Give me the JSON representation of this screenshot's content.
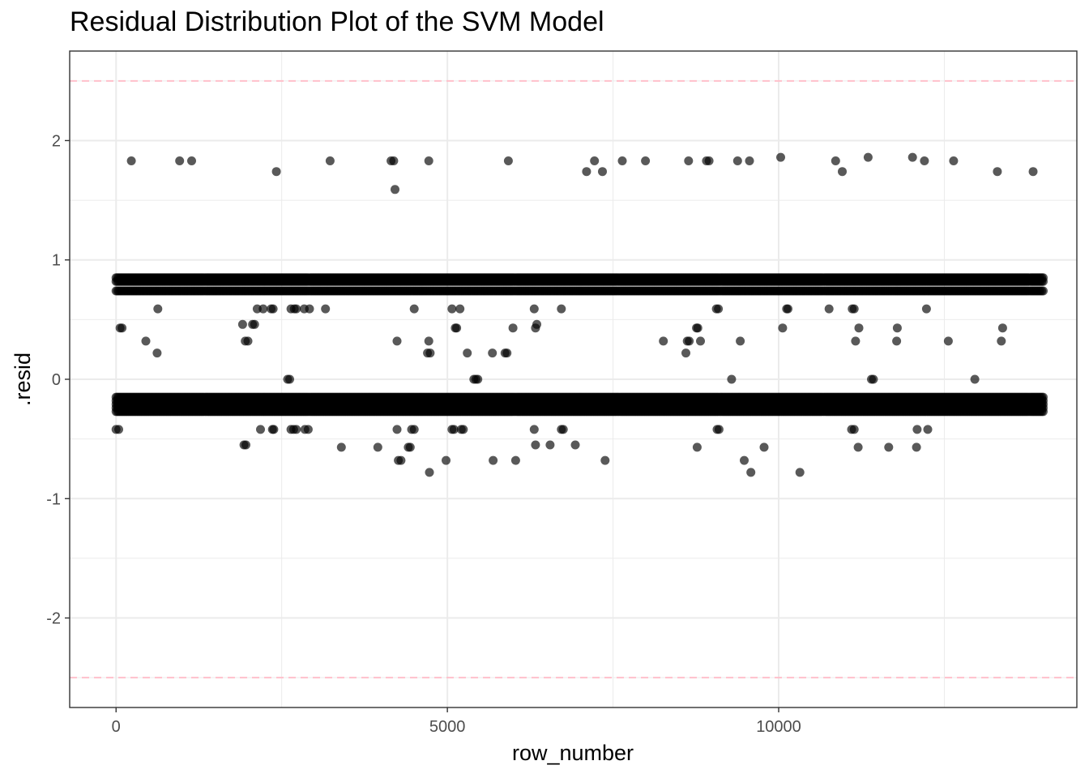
{
  "chart_data": {
    "type": "scatter",
    "title": "Residual Distribution Plot of the SVM Model",
    "xlabel": "row_number",
    "ylabel": ".resid",
    "xlim": [
      -700,
      14500
    ],
    "ylim": [
      -2.75,
      2.75
    ],
    "x_ticks": [
      0,
      5000,
      10000
    ],
    "x_tick_labels": [
      "0",
      "5000",
      "10000"
    ],
    "y_ticks": [
      -2,
      -1,
      0,
      1,
      2
    ],
    "y_tick_labels": [
      "-2",
      "-1",
      "0",
      "1",
      "2"
    ],
    "grid": true,
    "reference_lines": [
      {
        "y": 2.5,
        "style": "dashed",
        "color": "#ffc0cb"
      },
      {
        "y": -2.5,
        "style": "dashed",
        "color": "#ffc0cb"
      }
    ],
    "point_color": "#000000",
    "point_opacity": 0.65,
    "dense_bands": [
      {
        "x_range": [
          0,
          14000
        ],
        "y_values": [
          -0.15,
          -0.18,
          -0.21,
          -0.24,
          -0.27
        ]
      },
      {
        "x_range": [
          0,
          14000
        ],
        "y_values": [
          0.74,
          0.82,
          0.85
        ]
      }
    ],
    "points": [
      [
        230,
        1.83
      ],
      [
        960,
        1.83
      ],
      [
        1140,
        1.83
      ],
      [
        2420,
        1.74
      ],
      [
        3230,
        1.83
      ],
      [
        4150,
        1.83
      ],
      [
        4190,
        1.83
      ],
      [
        4210,
        1.59
      ],
      [
        4720,
        1.83
      ],
      [
        5920,
        1.83
      ],
      [
        7100,
        1.74
      ],
      [
        7220,
        1.83
      ],
      [
        7340,
        1.74
      ],
      [
        7640,
        1.83
      ],
      [
        7990,
        1.83
      ],
      [
        8640,
        1.83
      ],
      [
        8910,
        1.83
      ],
      [
        8950,
        1.83
      ],
      [
        9380,
        1.83
      ],
      [
        9560,
        1.83
      ],
      [
        10030,
        1.86
      ],
      [
        10860,
        1.83
      ],
      [
        10960,
        1.74
      ],
      [
        11350,
        1.86
      ],
      [
        12020,
        1.86
      ],
      [
        12200,
        1.83
      ],
      [
        12640,
        1.83
      ],
      [
        13300,
        1.74
      ],
      [
        13840,
        1.74
      ],
      [
        60,
        0.43
      ],
      [
        90,
        0.43
      ],
      [
        450,
        0.32
      ],
      [
        630,
        0.59
      ],
      [
        620,
        0.22
      ],
      [
        1910,
        0.46
      ],
      [
        1950,
        0.32
      ],
      [
        1990,
        0.32
      ],
      [
        2060,
        0.46
      ],
      [
        2090,
        0.46
      ],
      [
        2130,
        0.59
      ],
      [
        2220,
        0.59
      ],
      [
        2340,
        0.59
      ],
      [
        2370,
        0.59
      ],
      [
        2590,
        0.0
      ],
      [
        2620,
        0.0
      ],
      [
        2640,
        0.59
      ],
      [
        2690,
        0.59
      ],
      [
        2720,
        0.59
      ],
      [
        2840,
        0.59
      ],
      [
        2920,
        0.59
      ],
      [
        3160,
        0.59
      ],
      [
        4240,
        0.32
      ],
      [
        4500,
        0.59
      ],
      [
        4700,
        0.22
      ],
      [
        4720,
        0.32
      ],
      [
        4740,
        0.22
      ],
      [
        5070,
        0.59
      ],
      [
        5120,
        0.43
      ],
      [
        5140,
        0.43
      ],
      [
        5190,
        0.59
      ],
      [
        5300,
        0.22
      ],
      [
        5400,
        0.0
      ],
      [
        5430,
        0.0
      ],
      [
        5460,
        0.0
      ],
      [
        5680,
        0.22
      ],
      [
        5870,
        0.22
      ],
      [
        5900,
        0.22
      ],
      [
        5990,
        0.43
      ],
      [
        6310,
        0.59
      ],
      [
        6330,
        0.43
      ],
      [
        6350,
        0.46
      ],
      [
        6720,
        0.59
      ],
      [
        8260,
        0.32
      ],
      [
        8600,
        0.22
      ],
      [
        8620,
        0.32
      ],
      [
        8650,
        0.32
      ],
      [
        8760,
        0.43
      ],
      [
        8780,
        0.43
      ],
      [
        8820,
        0.32
      ],
      [
        9060,
        0.59
      ],
      [
        9090,
        0.59
      ],
      [
        9290,
        0.0
      ],
      [
        9420,
        0.32
      ],
      [
        10060,
        0.43
      ],
      [
        10120,
        0.59
      ],
      [
        10140,
        0.59
      ],
      [
        10760,
        0.59
      ],
      [
        11110,
        0.59
      ],
      [
        11140,
        0.59
      ],
      [
        11160,
        0.32
      ],
      [
        11210,
        0.43
      ],
      [
        11400,
        0.0
      ],
      [
        11430,
        0.0
      ],
      [
        11790,
        0.43
      ],
      [
        11780,
        0.32
      ],
      [
        12230,
        0.59
      ],
      [
        12560,
        0.32
      ],
      [
        12960,
        0.0
      ],
      [
        13380,
        0.43
      ],
      [
        13360,
        0.32
      ],
      [
        0,
        -0.42
      ],
      [
        40,
        -0.42
      ],
      [
        1930,
        -0.55
      ],
      [
        1960,
        -0.55
      ],
      [
        2180,
        -0.42
      ],
      [
        2360,
        -0.42
      ],
      [
        2380,
        -0.42
      ],
      [
        2640,
        -0.42
      ],
      [
        2680,
        -0.42
      ],
      [
        2720,
        -0.42
      ],
      [
        2850,
        -0.42
      ],
      [
        2900,
        -0.42
      ],
      [
        3400,
        -0.57
      ],
      [
        3950,
        -0.57
      ],
      [
        4240,
        -0.42
      ],
      [
        4260,
        -0.68
      ],
      [
        4300,
        -0.68
      ],
      [
        4460,
        -0.42
      ],
      [
        4500,
        -0.42
      ],
      [
        4410,
        -0.57
      ],
      [
        4440,
        -0.57
      ],
      [
        4730,
        -0.78
      ],
      [
        4980,
        -0.68
      ],
      [
        5070,
        -0.42
      ],
      [
        5100,
        -0.42
      ],
      [
        5210,
        -0.42
      ],
      [
        5240,
        -0.42
      ],
      [
        5690,
        -0.68
      ],
      [
        6030,
        -0.68
      ],
      [
        6310,
        -0.42
      ],
      [
        6330,
        -0.55
      ],
      [
        6550,
        -0.55
      ],
      [
        6720,
        -0.42
      ],
      [
        6750,
        -0.42
      ],
      [
        6930,
        -0.55
      ],
      [
        7380,
        -0.68
      ],
      [
        8770,
        -0.57
      ],
      [
        9070,
        -0.42
      ],
      [
        9100,
        -0.42
      ],
      [
        9480,
        -0.68
      ],
      [
        9580,
        -0.78
      ],
      [
        9780,
        -0.57
      ],
      [
        10320,
        -0.78
      ],
      [
        11100,
        -0.42
      ],
      [
        11140,
        -0.42
      ],
      [
        11200,
        -0.57
      ],
      [
        11660,
        -0.57
      ],
      [
        12080,
        -0.57
      ],
      [
        12090,
        -0.42
      ],
      [
        12250,
        -0.42
      ]
    ]
  }
}
